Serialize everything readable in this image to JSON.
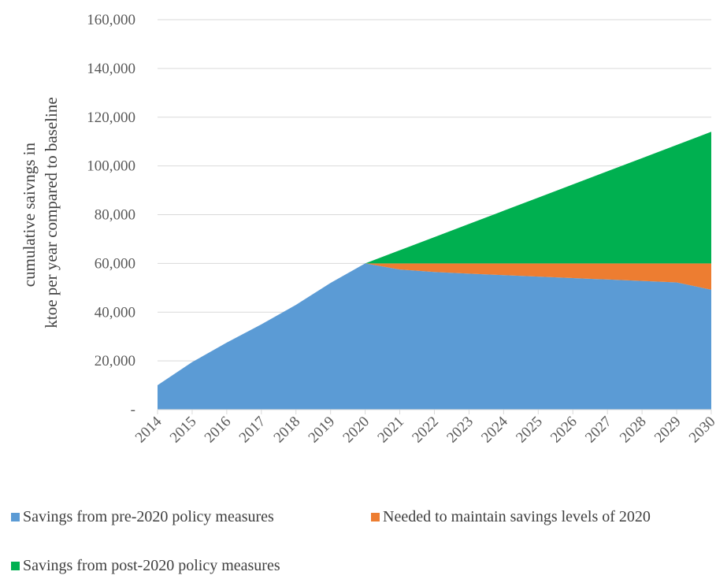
{
  "chart_data": {
    "type": "area",
    "stacked": true,
    "x": [
      "2014",
      "2015",
      "2016",
      "2017",
      "2018",
      "2019",
      "2020",
      "2021",
      "2022",
      "2023",
      "2024",
      "2025",
      "2026",
      "2027",
      "2028",
      "2029",
      "2030"
    ],
    "series": [
      {
        "name": "Savings from pre-2020 policy measures",
        "color": "#5B9BD5",
        "values": [
          10000,
          19500,
          27500,
          35000,
          43000,
          52000,
          60000,
          57500,
          56500,
          55800,
          55200,
          54600,
          54000,
          53400,
          52800,
          52200,
          49200
        ]
      },
      {
        "name": "Needed to maintain savings levels of 2020",
        "color": "#ED7D31",
        "values": [
          0,
          0,
          0,
          0,
          0,
          0,
          0,
          2500,
          3500,
          4200,
          4800,
          5400,
          6000,
          6600,
          7200,
          7800,
          10800
        ]
      },
      {
        "name": "Savings from post-2020 policy measures",
        "color": "#00B050",
        "values": [
          0,
          0,
          0,
          0,
          0,
          0,
          0,
          5400,
          10800,
          16200,
          21600,
          27000,
          32400,
          37800,
          43200,
          48600,
          54000
        ]
      }
    ],
    "ylabel_lines": [
      "cumulative saivngs in",
      "ktoe per year compared to baseline"
    ],
    "ylim": [
      0,
      160000
    ],
    "yticks": [
      0,
      20000,
      40000,
      60000,
      80000,
      100000,
      120000,
      140000,
      160000
    ],
    "ytick_labels": [
      "-",
      "20,000",
      "40,000",
      "60,000",
      "80,000",
      "100,000",
      "120,000",
      "140,000",
      "160,000"
    ],
    "grid": "horizontal",
    "gridline_color": "#D9D9D9",
    "legend_position": "bottom"
  }
}
